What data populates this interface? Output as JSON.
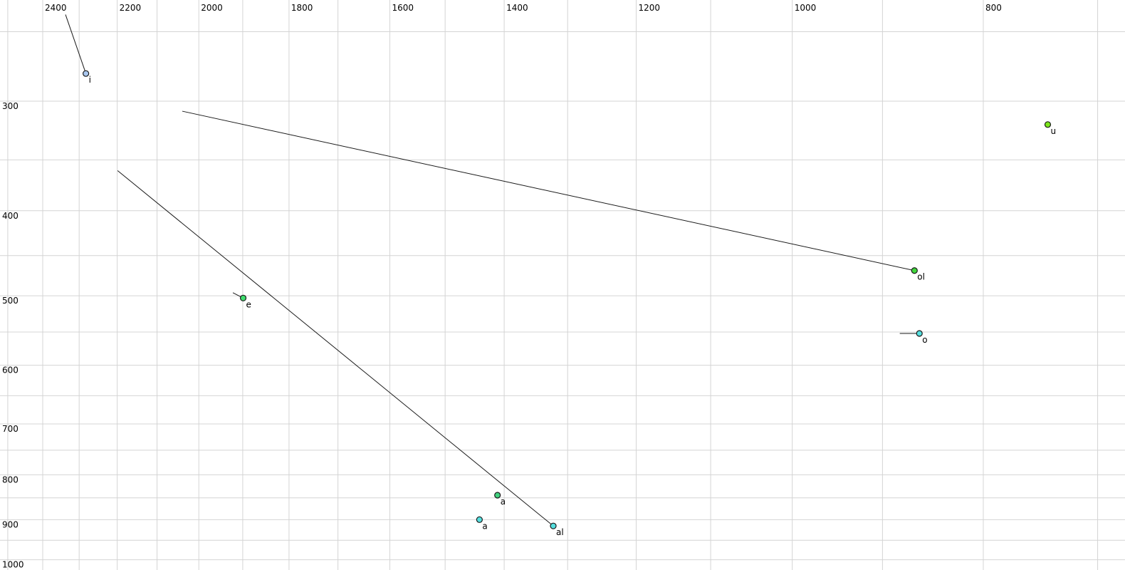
{
  "chart_data": {
    "type": "scatter",
    "title": "",
    "description": "Vowel formant plot: F2 on top axis (Hz, log scale, decreasing left-to-right), F1 on left axis (Hz, log scale, increasing downward). Points are vowel tokens with formant-movement tail lines.",
    "x_axis": {
      "unit": "Hz",
      "scale": "log",
      "position": "top",
      "reversed": true,
      "tick_labels": [
        "2400",
        "2200",
        "2000",
        "1800",
        "1600",
        "1400",
        "1200",
        "1000",
        "800"
      ],
      "tick_values": [
        2400,
        2200,
        2000,
        1800,
        1600,
        1400,
        1200,
        1000,
        800
      ],
      "minor_gridline_from": 2500,
      "minor_gridline_to": 700,
      "minor_gridline_step": 100,
      "range_visible": [
        2520,
        680
      ]
    },
    "y_axis": {
      "unit": "Hz",
      "scale": "log",
      "position": "left",
      "increases_downward": true,
      "tick_labels": [
        "300",
        "400",
        "500",
        "600",
        "700",
        "800",
        "900",
        "1000"
      ],
      "tick_values": [
        300,
        400,
        500,
        600,
        700,
        800,
        900,
        1000
      ],
      "minor_gridline_from": 250,
      "minor_gridline_to": 1000,
      "minor_gridline_step": 50,
      "range_visible": [
        230,
        1026
      ]
    },
    "grid": true,
    "legend": false,
    "colors": {
      "background": "#ffffff",
      "gridline": "#d4d4d4",
      "trajectory_line": "#1a1a1a",
      "point_stroke": "#1a1a1a",
      "light_blue": "#a9c7ef",
      "yellow_green": "#7ce71c",
      "green": "#41d63c",
      "spring_green": "#3edc6e",
      "emerald": "#41d17e",
      "cyan": "#55dfdf",
      "gray_label": "#8b8b8b",
      "black_label": "#000000"
    },
    "points": [
      {
        "label": "i",
        "f2": 2282,
        "f1": 279,
        "fill": "#a9c7ef",
        "label_color": "#000000",
        "tail": {
          "f2": 2337,
          "f1": 239
        }
      },
      {
        "label": "u",
        "f2": 742,
        "f1": 319,
        "fill": "#7ce71c",
        "label_color": "#000000",
        "tail": null
      },
      {
        "label": "e",
        "f2": 1899,
        "f1": 503,
        "fill": "#3edc6e",
        "label_color": "#000000",
        "tail": {
          "f2": 1922,
          "f1": 496
        }
      },
      {
        "label": "ol",
        "f2": 867,
        "f1": 468,
        "fill": "#41d63c",
        "label_color": "#000000",
        "tail": {
          "f2": 2039,
          "f1": 308
        }
      },
      {
        "label": "o",
        "f2": 862,
        "f1": 552,
        "fill": "#55dfdf",
        "label_color": "#000000",
        "tail": {
          "f2": 882,
          "f1": 552
        }
      },
      {
        "label": "a",
        "f2": 1411,
        "f1": 844,
        "fill": "#41d17e",
        "label_color": "#8b8b8b",
        "tail": null
      },
      {
        "label": "a",
        "f2": 1441,
        "f1": 900,
        "fill": "#55dfdf",
        "label_color": "#000000",
        "tail": null
      },
      {
        "label": "al",
        "f2": 1322,
        "f1": 915,
        "fill": "#55dfdf",
        "label_color": "#000000",
        "tail": {
          "f2": 2199,
          "f1": 360
        }
      }
    ]
  }
}
